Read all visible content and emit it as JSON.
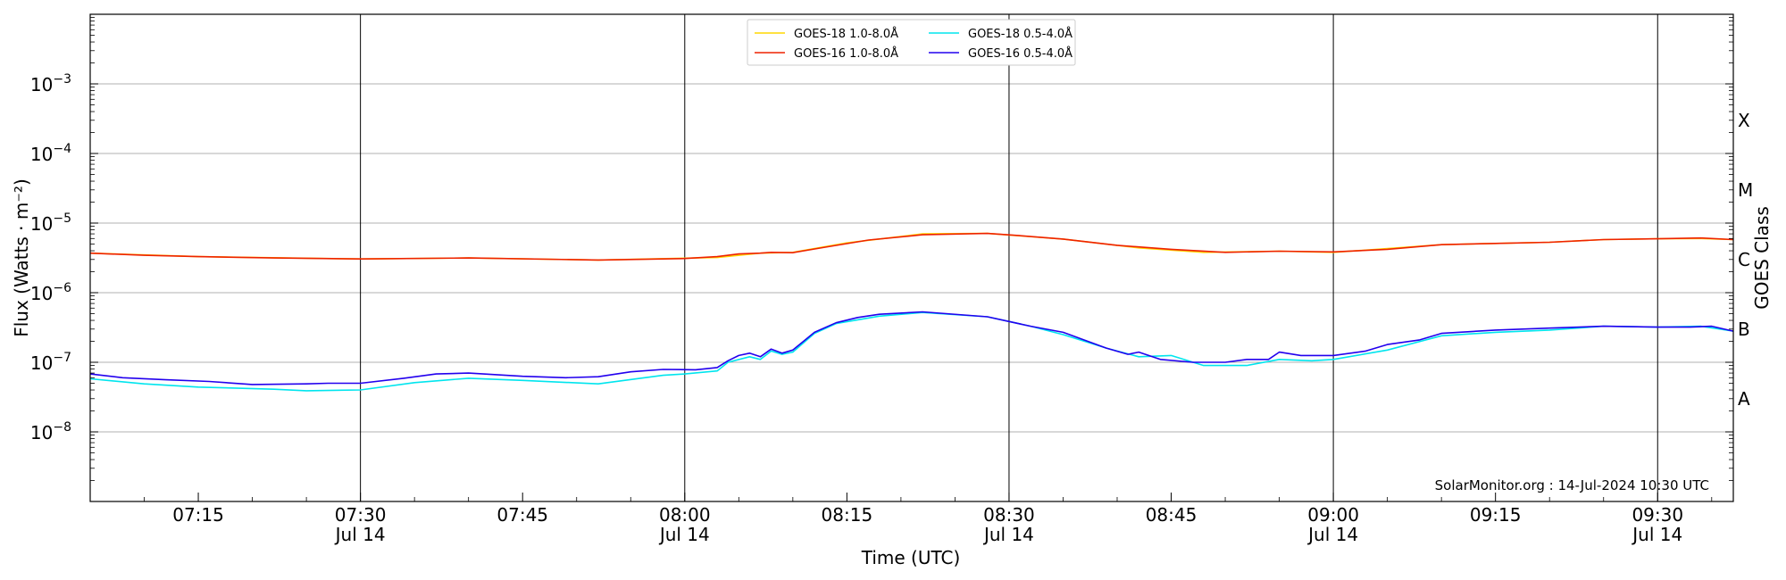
{
  "chart_data": {
    "type": "line",
    "xlabel": "Time (UTC)",
    "ylabel": "Flux (Watts · m⁻²)",
    "right_axis_label": "GOES Class",
    "credit": "SolarMonitor.org : 14-Jul-2024 10:30 UTC",
    "y_scale": "log",
    "ylim": [
      1e-09,
      0.01
    ],
    "x_range_minutes": [
      "07:05",
      "09:37"
    ],
    "y_ticks": [
      {
        "value": 1e-08,
        "base": "10",
        "exp": "−8"
      },
      {
        "value": 1e-07,
        "base": "10",
        "exp": "−7"
      },
      {
        "value": 1e-06,
        "base": "10",
        "exp": "−6"
      },
      {
        "value": 1e-05,
        "base": "10",
        "exp": "−5"
      },
      {
        "value": 0.0001,
        "base": "10",
        "exp": "−4"
      },
      {
        "value": 0.001,
        "base": "10",
        "exp": "−3"
      }
    ],
    "x_ticks": [
      {
        "time": "07:15",
        "label": "07:15",
        "sublabel": ""
      },
      {
        "time": "07:30",
        "label": "07:30",
        "sublabel": "Jul 14"
      },
      {
        "time": "07:45",
        "label": "07:45",
        "sublabel": ""
      },
      {
        "time": "08:00",
        "label": "08:00",
        "sublabel": "Jul 14"
      },
      {
        "time": "08:15",
        "label": "08:15",
        "sublabel": ""
      },
      {
        "time": "08:30",
        "label": "08:30",
        "sublabel": "Jul 14"
      },
      {
        "time": "08:45",
        "label": "08:45",
        "sublabel": ""
      },
      {
        "time": "09:00",
        "label": "09:00",
        "sublabel": "Jul 14"
      },
      {
        "time": "09:15",
        "label": "09:15",
        "sublabel": ""
      },
      {
        "time": "09:30",
        "label": "09:30",
        "sublabel": "Jul 14"
      }
    ],
    "vertical_lines": [
      "07:30",
      "08:00",
      "08:30",
      "09:00",
      "09:30"
    ],
    "goes_classes": [
      {
        "label": "A",
        "value": 3e-08
      },
      {
        "label": "B",
        "value": 3e-07
      },
      {
        "label": "C",
        "value": 3e-06
      },
      {
        "label": "M",
        "value": 3e-05
      },
      {
        "label": "X",
        "value": 0.0003
      }
    ],
    "grid": "horizontal",
    "legend_position": "top-center",
    "series": [
      {
        "name": "GOES-18 1.0-8.0Å",
        "color": "#ffd700",
        "times": [
          "07:05",
          "07:15",
          "07:30",
          "07:40",
          "07:52",
          "08:03",
          "08:07",
          "08:10",
          "08:15",
          "08:22",
          "08:28",
          "08:35",
          "08:42",
          "08:48",
          "08:55",
          "09:00",
          "09:05",
          "09:10",
          "09:15",
          "09:20",
          "09:25",
          "09:30",
          "09:34",
          "09:37"
        ],
        "values": [
          3.7e-06,
          3.3e-06,
          3.05e-06,
          3.15e-06,
          2.95e-06,
          3.2e-06,
          3.7e-06,
          3.8e-06,
          5.2e-06,
          7e-06,
          7.1e-06,
          5.9e-06,
          4.4e-06,
          3.8e-06,
          3.95e-06,
          3.8e-06,
          4.3e-06,
          4.9e-06,
          5.1e-06,
          5.3e-06,
          5.8e-06,
          5.95e-06,
          6e-06,
          5.8e-06
        ]
      },
      {
        "name": "GOES-16 1.0-8.0Å",
        "color": "#ee2200",
        "times": [
          "07:05",
          "07:10",
          "07:15",
          "07:22",
          "07:30",
          "07:40",
          "07:52",
          "08:00",
          "08:03",
          "08:05",
          "08:07",
          "08:08",
          "08:10",
          "08:13",
          "08:17",
          "08:22",
          "08:28",
          "08:31",
          "08:35",
          "08:40",
          "08:45",
          "08:50",
          "08:55",
          "09:00",
          "09:05",
          "09:10",
          "09:15",
          "09:20",
          "09:25",
          "09:30",
          "09:34",
          "09:37"
        ],
        "values": [
          3.7e-06,
          3.45e-06,
          3.3e-06,
          3.15e-06,
          3.05e-06,
          3.15e-06,
          2.95e-06,
          3.1e-06,
          3.3e-06,
          3.6e-06,
          3.7e-06,
          3.8e-06,
          3.75e-06,
          4.5e-06,
          5.7e-06,
          6.8e-06,
          7.1e-06,
          6.6e-06,
          5.9e-06,
          4.8e-06,
          4.2e-06,
          3.8e-06,
          3.95e-06,
          3.85e-06,
          4.2e-06,
          4.9e-06,
          5.1e-06,
          5.3e-06,
          5.8e-06,
          5.95e-06,
          6.1e-06,
          5.8e-06
        ]
      },
      {
        "name": "GOES-18 0.5-4.0Å",
        "color": "#00e5ee",
        "times": [
          "07:05",
          "07:10",
          "07:15",
          "07:22",
          "07:25",
          "07:30",
          "07:35",
          "07:40",
          "07:45",
          "07:52",
          "07:58",
          "08:00",
          "08:03",
          "08:04",
          "08:06",
          "08:07",
          "08:08",
          "08:09",
          "08:10",
          "08:12",
          "08:14",
          "08:18",
          "08:22",
          "08:28",
          "08:32",
          "08:35",
          "08:39",
          "08:42",
          "08:45",
          "08:48",
          "08:52",
          "08:55",
          "08:58",
          "09:00",
          "09:05",
          "09:10",
          "09:15",
          "09:20",
          "09:25",
          "09:30",
          "09:34",
          "09:37"
        ],
        "values": [
          5.8e-08,
          4.9e-08,
          4.4e-08,
          4.1e-08,
          3.9e-08,
          4e-08,
          5.1e-08,
          5.9e-08,
          5.5e-08,
          4.9e-08,
          6.5e-08,
          6.8e-08,
          7.5e-08,
          1e-07,
          1.2e-07,
          1.1e-07,
          1.45e-07,
          1.3e-07,
          1.4e-07,
          2.6e-07,
          3.6e-07,
          4.6e-07,
          5.2e-07,
          4.5e-07,
          3.3e-07,
          2.5e-07,
          1.6e-07,
          1.2e-07,
          1.25e-07,
          9e-08,
          9e-08,
          1.1e-07,
          1.05e-07,
          1.1e-07,
          1.5e-07,
          2.4e-07,
          2.7e-07,
          2.9e-07,
          3.3e-07,
          3.2e-07,
          3.3e-07,
          2.8e-07
        ]
      },
      {
        "name": "GOES-16 0.5-4.0Å",
        "color": "#2200ee",
        "times": [
          "07:05",
          "07:08",
          "07:12",
          "07:16",
          "07:20",
          "07:25",
          "07:27",
          "07:30",
          "07:34",
          "07:37",
          "07:40",
          "07:45",
          "07:49",
          "07:52",
          "07:55",
          "07:58",
          "08:01",
          "08:03",
          "08:04",
          "08:05",
          "08:06",
          "08:07",
          "08:08",
          "08:09",
          "08:10",
          "08:12",
          "08:14",
          "08:16",
          "08:18",
          "08:22",
          "08:28",
          "08:32",
          "08:35",
          "08:39",
          "08:41",
          "08:42",
          "08:44",
          "08:47",
          "08:50",
          "08:52",
          "08:54",
          "08:55",
          "08:57",
          "09:00",
          "09:03",
          "09:05",
          "09:08",
          "09:10",
          "09:15",
          "09:20",
          "09:25",
          "09:30",
          "09:33",
          "09:35",
          "09:37"
        ],
        "values": [
          6.8e-08,
          6e-08,
          5.6e-08,
          5.3e-08,
          4.8e-08,
          4.9e-08,
          5e-08,
          5e-08,
          5.9e-08,
          6.8e-08,
          7e-08,
          6.3e-08,
          6e-08,
          6.2e-08,
          7.3e-08,
          7.9e-08,
          7.8e-08,
          8.4e-08,
          1.05e-07,
          1.25e-07,
          1.35e-07,
          1.2e-07,
          1.55e-07,
          1.35e-07,
          1.5e-07,
          2.7e-07,
          3.7e-07,
          4.4e-07,
          4.9e-07,
          5.3e-07,
          4.5e-07,
          3.3e-07,
          2.7e-07,
          1.6e-07,
          1.3e-07,
          1.4e-07,
          1.1e-07,
          1e-07,
          1e-07,
          1.1e-07,
          1.1e-07,
          1.4e-07,
          1.25e-07,
          1.25e-07,
          1.45e-07,
          1.8e-07,
          2.1e-07,
          2.6e-07,
          2.9e-07,
          3.1e-07,
          3.3e-07,
          3.2e-07,
          3.2e-07,
          3.3e-07,
          2.8e-07
        ]
      }
    ]
  }
}
